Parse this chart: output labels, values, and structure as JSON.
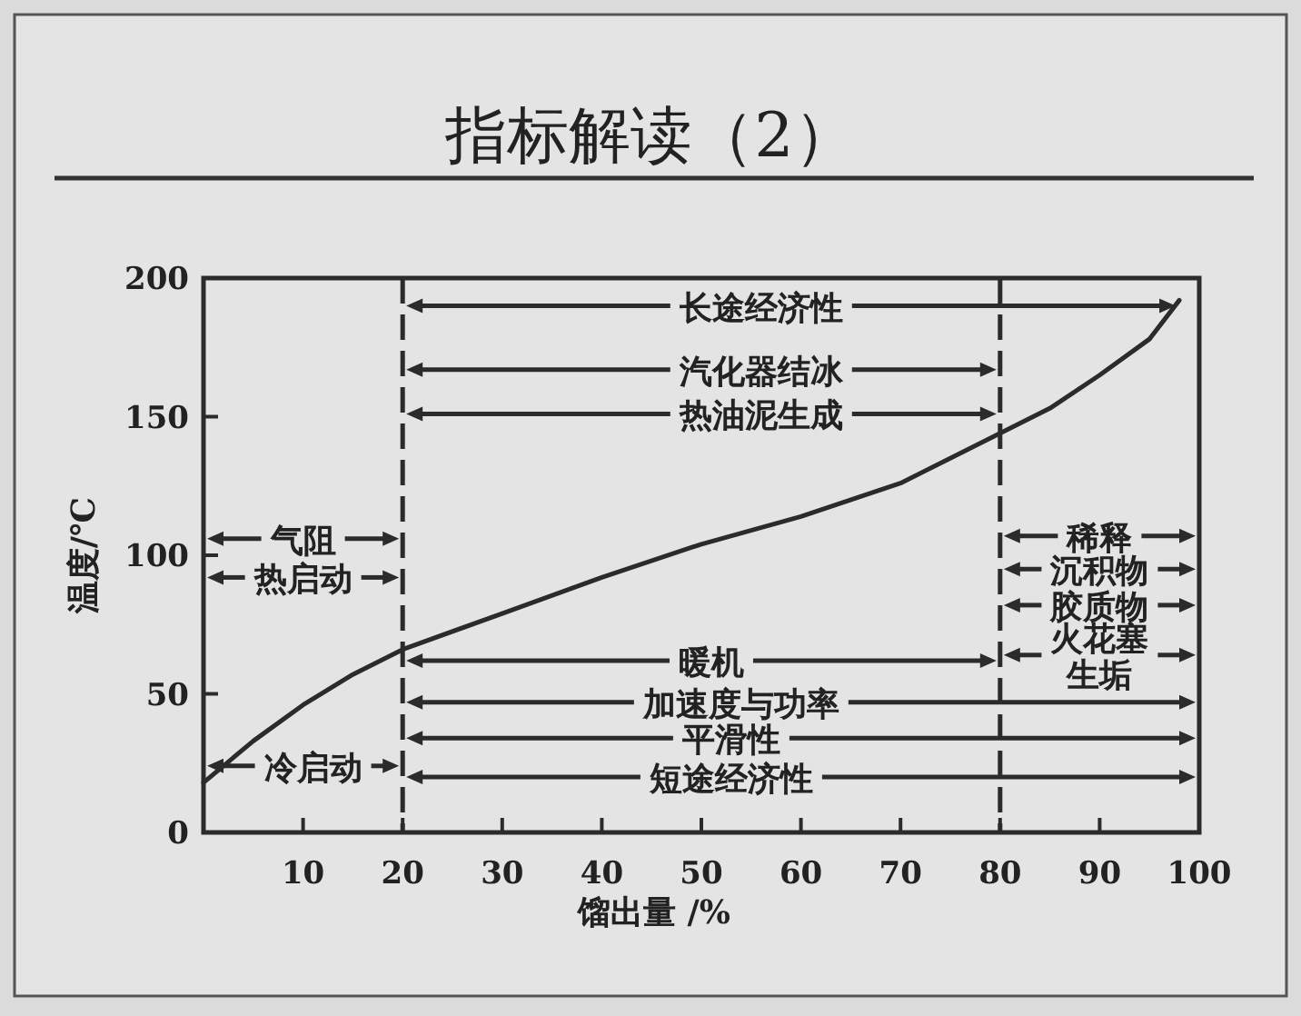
{
  "chart_data": {
    "type": "line",
    "title": "指标解读（2）",
    "xlabel": "馏出量 /%",
    "ylabel": "温度/℃",
    "x": [
      0,
      5,
      10,
      15,
      20,
      30,
      40,
      50,
      60,
      70,
      80,
      85,
      90,
      95,
      98
    ],
    "series": [
      {
        "color": "#2b2b2b",
        "values": [
          18,
          33,
          46,
          57,
          66,
          79,
          92,
          104,
          114,
          126,
          144,
          153,
          165,
          178,
          192
        ]
      }
    ],
    "xlim": [
      0,
      100
    ],
    "ylim": [
      0,
      200
    ],
    "xticks": [
      10,
      20,
      30,
      40,
      50,
      60,
      70,
      80,
      90,
      100
    ],
    "yticks": [
      0,
      50,
      100,
      150,
      200
    ],
    "ref_lines": [
      {
        "axis": "x",
        "value": 20,
        "line_style": "dashed",
        "color": "#2b2b2b"
      },
      {
        "axis": "x",
        "value": 80,
        "line_style": "dashed",
        "color": "#2b2b2b"
      }
    ],
    "annotations": [
      "长途经济性",
      "汽化器结冰",
      "热油泥生成",
      "气阻",
      "热启动",
      "冷启动",
      "暖机",
      "加速度与功率",
      "平滑性",
      "短途经济性",
      "稀释",
      "沉积物",
      "胶质物",
      "火花塞生垢"
    ],
    "grid": false
  }
}
